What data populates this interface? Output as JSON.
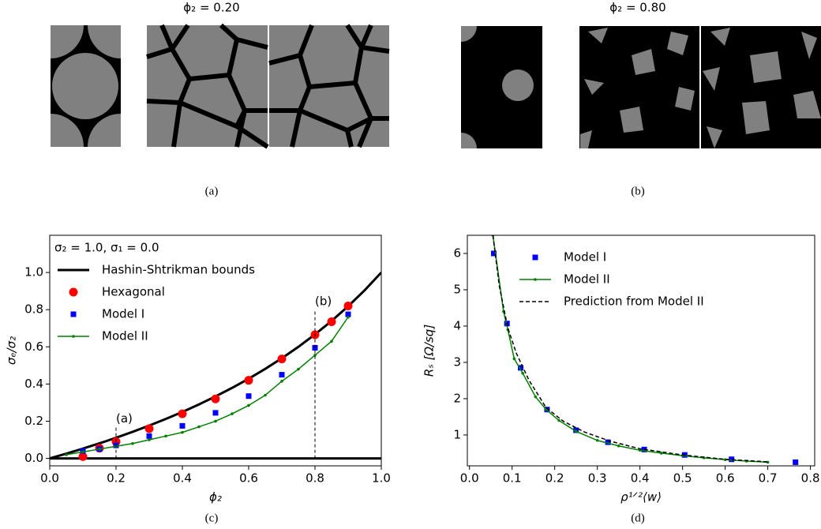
{
  "panels": {
    "a": {
      "title": "ϕ₂ = 0.20",
      "caption": "(a)"
    },
    "b": {
      "title": "ϕ₂ = 0.80",
      "caption": "(b)"
    },
    "c": {
      "caption": "(c)"
    },
    "d": {
      "caption": "(d)"
    }
  },
  "chart_data": [
    {
      "type": "line",
      "annotation": "σ₂ = 1.0, σ₁ = 0.0",
      "x_label": "ϕ₂",
      "y_label": "σₑ/σ₂",
      "xlim": [
        0,
        1
      ],
      "ylim": [
        -0.04,
        1.2
      ],
      "xticks": [
        {
          "value": 0,
          "label": "0.0"
        },
        0.2,
        0.4,
        0.6,
        0.8,
        {
          "value": 1,
          "label": "1.0"
        }
      ],
      "yticks": [
        {
          "value": 0,
          "label": "0.0"
        },
        0.2,
        0.4,
        0.6,
        0.8,
        {
          "value": 1,
          "label": "1.0"
        }
      ],
      "legend": "upper left",
      "reference_lines": [
        {
          "x": 0.2,
          "top": 0.17,
          "label": "(a)"
        },
        {
          "x": 0.8,
          "top": 0.8,
          "label": "(b)"
        }
      ],
      "series": [
        {
          "name": "Hashin-Shtrikman bounds",
          "color": "#000000",
          "style": "line",
          "width": 3,
          "x": [
            0,
            0.05,
            0.1,
            0.15,
            0.2,
            0.25,
            0.3,
            0.35,
            0.4,
            0.45,
            0.5,
            0.55,
            0.6,
            0.65,
            0.7,
            0.75,
            0.8,
            0.85,
            0.9,
            0.95,
            1
          ],
          "values": [
            0,
            0.0256,
            0.0526,
            0.0811,
            0.1111,
            0.1429,
            0.1765,
            0.2121,
            0.25,
            0.2903,
            0.3333,
            0.3793,
            0.4286,
            0.4815,
            0.5385,
            0.6,
            0.6667,
            0.7391,
            0.8182,
            0.9048,
            1
          ],
          "lower_values": [
            0,
            0,
            0,
            0,
            0,
            0,
            0,
            0,
            0,
            0,
            0,
            0,
            0,
            0,
            0,
            0,
            0,
            0,
            0,
            0,
            0
          ]
        },
        {
          "name": "Hexagonal",
          "color": "#ff0000",
          "style": "marker",
          "marker": "circle",
          "x": [
            0.1,
            0.15,
            0.2,
            0.3,
            0.4,
            0.5,
            0.6,
            0.7,
            0.8,
            0.85,
            0.9
          ],
          "values": [
            0.01,
            0.055,
            0.09,
            0.16,
            0.24,
            0.32,
            0.42,
            0.535,
            0.665,
            0.735,
            0.82
          ]
        },
        {
          "name": "Model I",
          "color": "#0000ff",
          "style": "marker",
          "marker": "square",
          "x": [
            0.1,
            0.15,
            0.2,
            0.3,
            0.4,
            0.5,
            0.6,
            0.7,
            0.8,
            0.9
          ],
          "values": [
            0.04,
            0.05,
            0.07,
            0.12,
            0.175,
            0.245,
            0.335,
            0.45,
            0.595,
            0.775
          ]
        },
        {
          "name": "Model II",
          "color": "#008000",
          "style": "line-marker",
          "marker": "dot",
          "width": 1.5,
          "x": [
            0.05,
            0.1,
            0.15,
            0.2,
            0.25,
            0.3,
            0.35,
            0.4,
            0.45,
            0.5,
            0.55,
            0.6,
            0.65,
            0.7,
            0.75,
            0.8,
            0.85,
            0.9
          ],
          "values": [
            0.02,
            0.035,
            0.05,
            0.065,
            0.08,
            0.1,
            0.12,
            0.14,
            0.17,
            0.2,
            0.24,
            0.285,
            0.34,
            0.415,
            0.48,
            0.555,
            0.63,
            0.76
          ]
        }
      ]
    },
    {
      "type": "line",
      "x_label": "ρ¹ᐟ²⟨w⟩",
      "y_label": "Rₛ [Ω/sq]",
      "xlim": [
        -0.005,
        0.81
      ],
      "ylim": [
        0.15,
        6.5
      ],
      "xticks": [
        {
          "value": 0,
          "label": "0.0"
        },
        0.1,
        0.2,
        0.3,
        0.4,
        0.5,
        0.6,
        0.7,
        0.8
      ],
      "yticks": [
        1,
        2,
        3,
        4,
        5,
        6
      ],
      "legend": "upper center",
      "series": [
        {
          "name": "Model I",
          "color": "#0000ff",
          "style": "marker",
          "marker": "square",
          "x": [
            0.057,
            0.088,
            0.12,
            0.182,
            0.25,
            0.325,
            0.41,
            0.505,
            0.615,
            0.765
          ],
          "values": [
            6.0,
            4.07,
            2.85,
            1.7,
            1.13,
            0.8,
            0.6,
            0.45,
            0.33,
            0.25
          ]
        },
        {
          "name": "Model II",
          "color": "#008000",
          "style": "line-marker",
          "marker": "dot",
          "width": 1.5,
          "x": [
            0.055,
            0.08,
            0.09,
            0.105,
            0.125,
            0.155,
            0.18,
            0.21,
            0.25,
            0.3,
            0.35,
            0.4,
            0.45,
            0.5,
            0.55,
            0.6,
            0.65,
            0.7
          ],
          "values": [
            6.5,
            4.4,
            3.9,
            3.1,
            2.7,
            2.05,
            1.7,
            1.4,
            1.1,
            0.85,
            0.7,
            0.58,
            0.5,
            0.43,
            0.37,
            0.32,
            0.28,
            0.25
          ]
        },
        {
          "name": "Prediction from Model II",
          "color": "#000000",
          "style": "line",
          "dash": true,
          "width": 1.5,
          "x": [
            0.055,
            0.07,
            0.09,
            0.11,
            0.14,
            0.18,
            0.22,
            0.27,
            0.33,
            0.4,
            0.5,
            0.6,
            0.7
          ],
          "values": [
            6.5,
            5.1,
            3.95,
            3.25,
            2.5,
            1.75,
            1.38,
            1.08,
            0.83,
            0.62,
            0.45,
            0.33,
            0.26
          ]
        }
      ]
    }
  ]
}
